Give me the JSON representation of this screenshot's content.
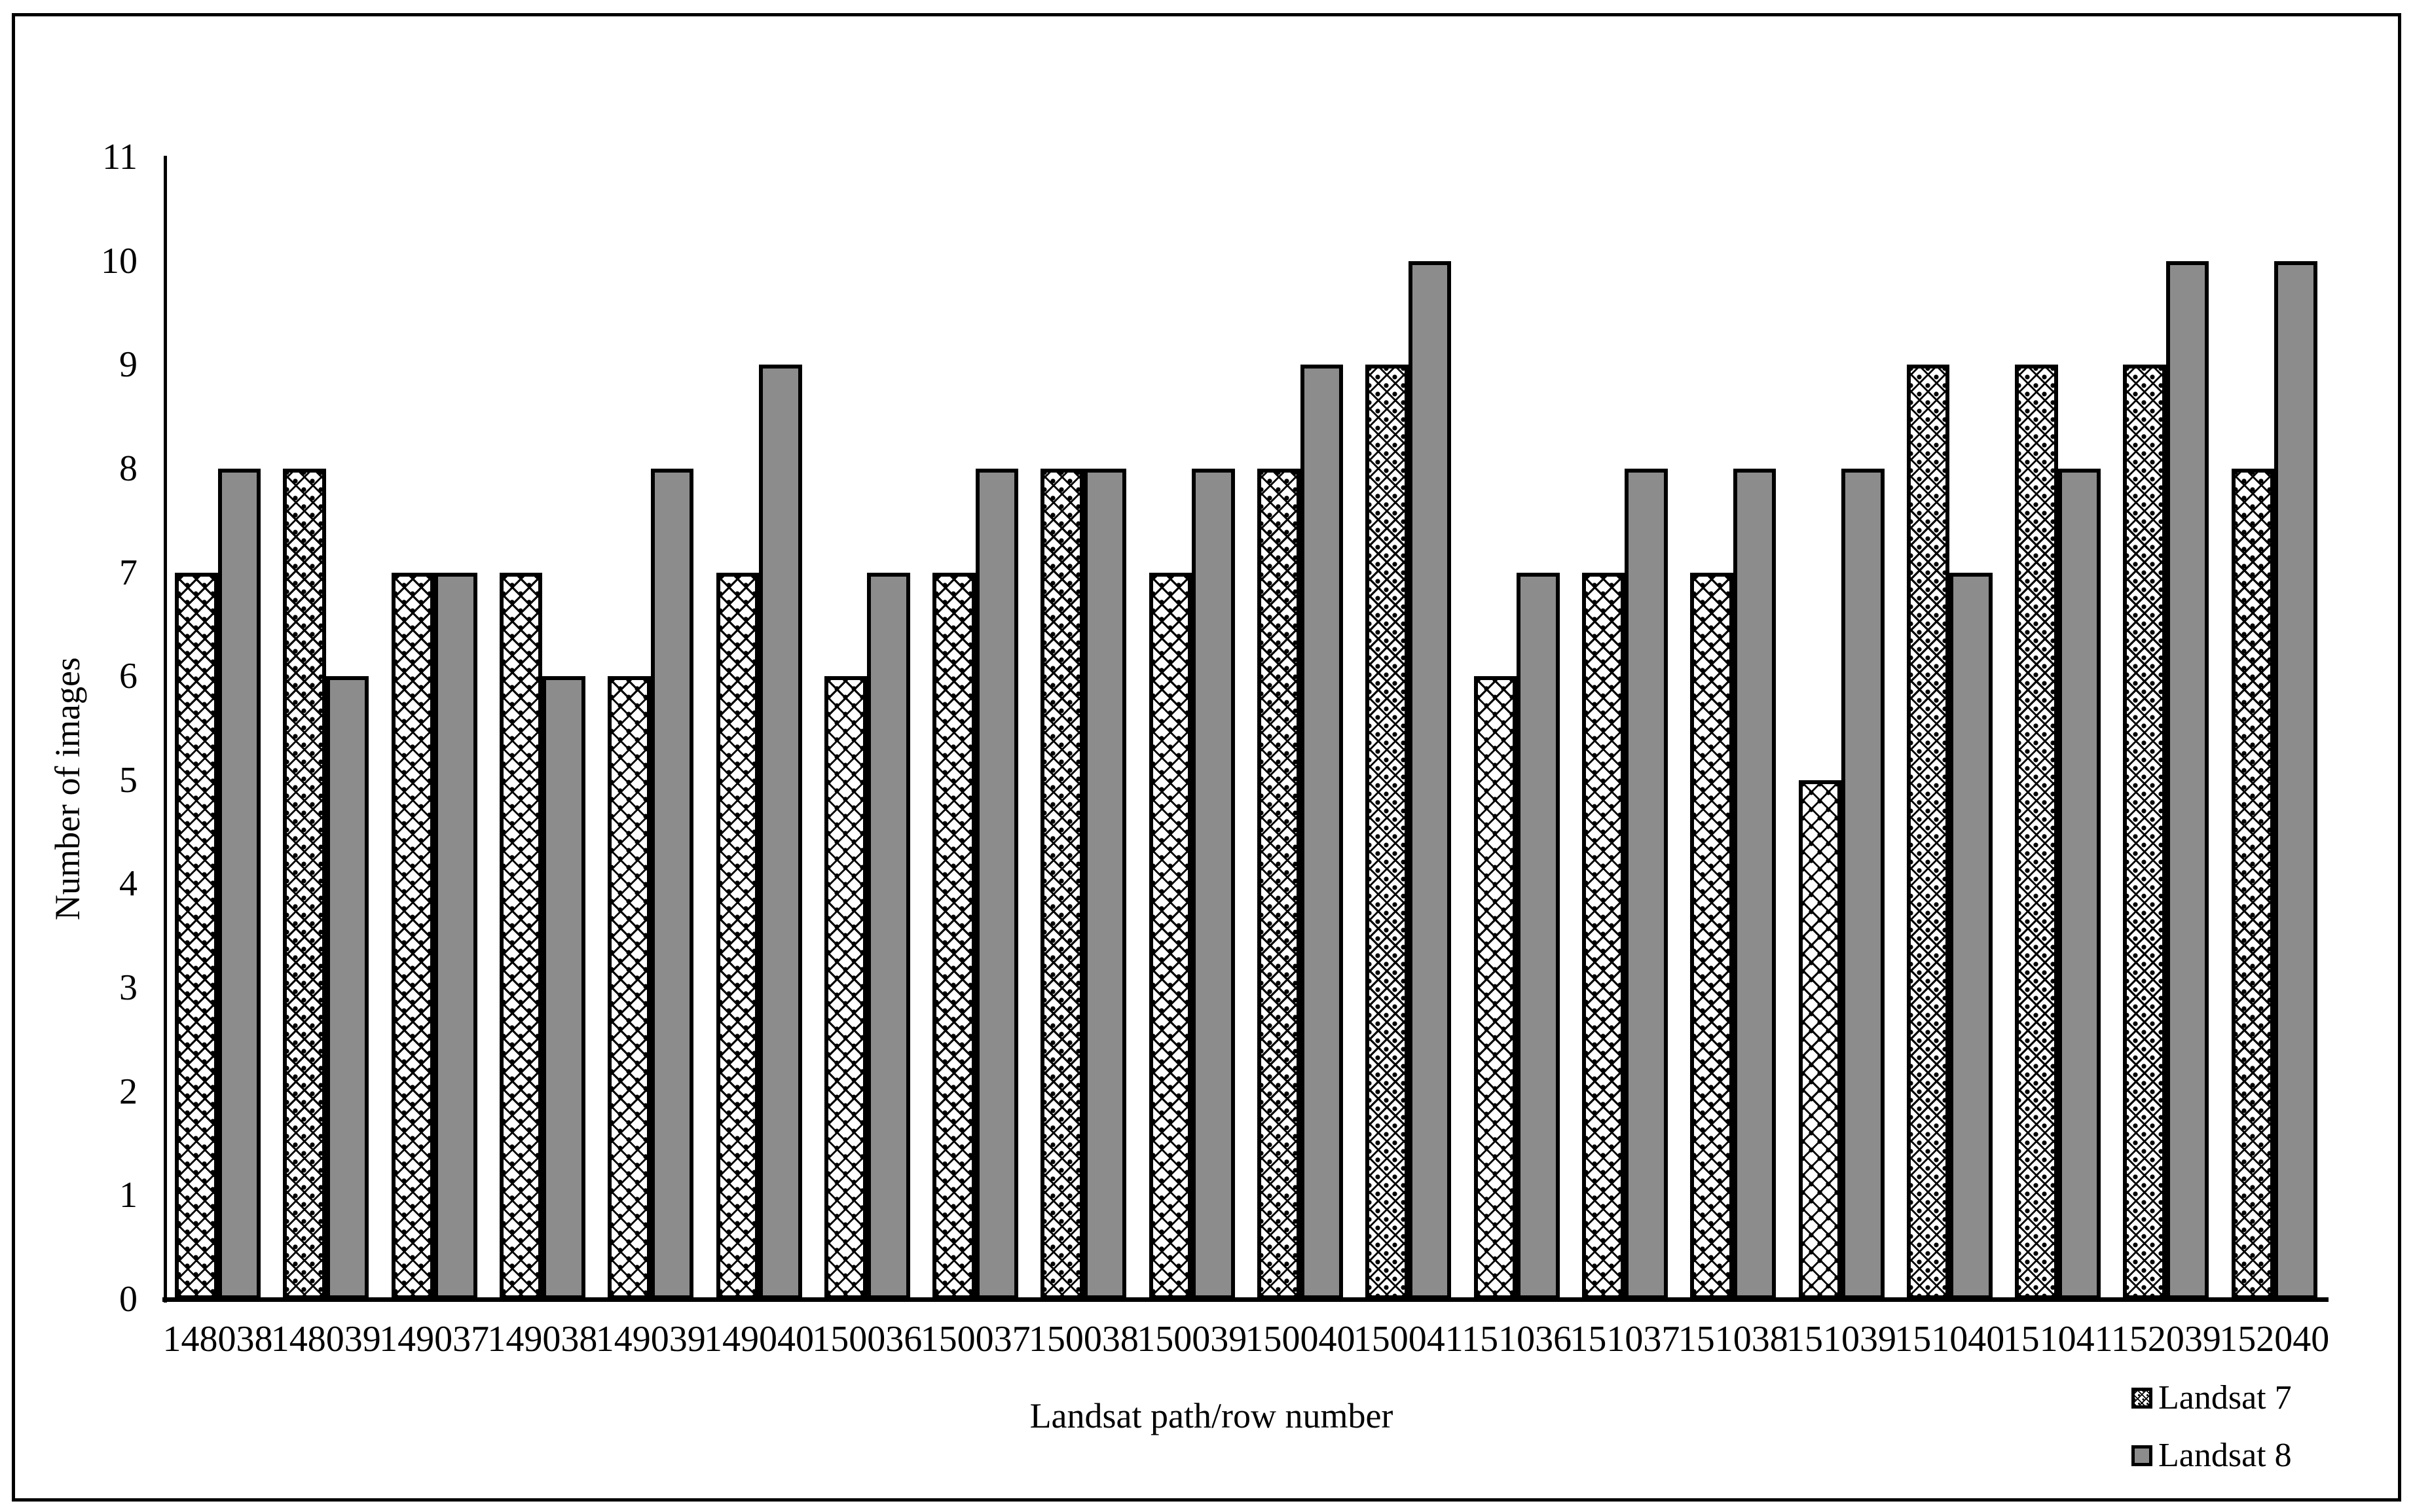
{
  "chart_data": {
    "type": "bar",
    "title": "",
    "xlabel": "Landsat path/row number",
    "ylabel": "Number of images",
    "categories": [
      "148038",
      "148039",
      "149037",
      "149038",
      "149039",
      "149040",
      "150036",
      "150037",
      "150038",
      "150039",
      "150040",
      "150041",
      "151036",
      "151037",
      "151038",
      "151039",
      "151040",
      "151041",
      "152039",
      "152040"
    ],
    "series": [
      {
        "name": "Landsat 7",
        "values": [
          7,
          8,
          7,
          7,
          6,
          7,
          6,
          7,
          8,
          7,
          8,
          9,
          6,
          7,
          7,
          5,
          9,
          9,
          9,
          8
        ],
        "fill": "crosshatch-pattern",
        "fill_color": "#ffffff",
        "pattern_color": "#000000"
      },
      {
        "name": "Landsat 8",
        "values": [
          8,
          6,
          7,
          6,
          8,
          9,
          7,
          8,
          8,
          8,
          9,
          10,
          7,
          8,
          8,
          8,
          7,
          8,
          10,
          10
        ],
        "fill": "solid",
        "fill_color": "#8c8c8c"
      }
    ],
    "ylim": [
      0,
      11
    ],
    "yticks": [
      0,
      1,
      2,
      3,
      4,
      5,
      6,
      7,
      8,
      9,
      10,
      11
    ],
    "grid": false,
    "legend_position": "bottom-right",
    "bar_border_color": "#000000",
    "axis_color": "#000000",
    "frame_border_color": "#000000"
  }
}
